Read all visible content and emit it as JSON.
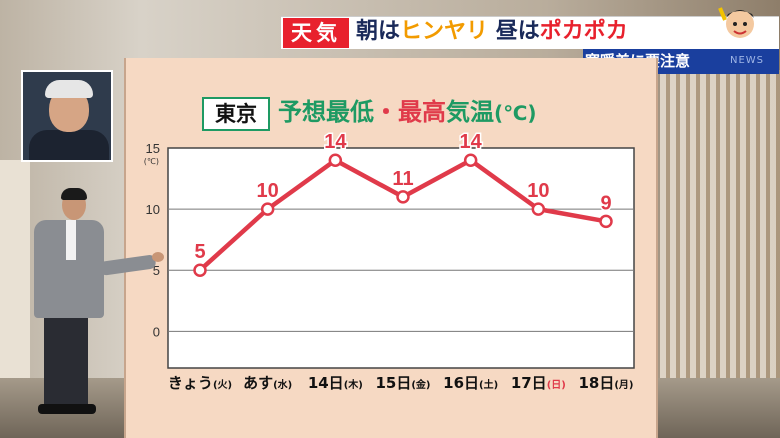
{
  "banner": {
    "badge": "天気",
    "headline": {
      "part1": "朝は",
      "part2": "ヒンヤリ",
      "part3": "昼は",
      "part4": "ポカポカ"
    },
    "subline": "寒暖差に要注意",
    "tag": "NEWS"
  },
  "board": {
    "location": "東京",
    "title": {
      "part1": "予想",
      "part2": "最低",
      "dot": "・",
      "part3": "最高",
      "part4": "気温",
      "unit": "(℃)"
    }
  },
  "colors": {
    "line": "#e03a4a",
    "accent_green": "#1e9a63",
    "badge_red": "#e8212d",
    "sub_blue": "#1a3f9e"
  },
  "chart_data": {
    "type": "line",
    "ylim": [
      -3,
      15
    ],
    "yticks": [
      0,
      5,
      10,
      15
    ],
    "ylabel_unit": "(℃)",
    "categories": [
      {
        "main": "きょう",
        "day": "(火)",
        "day_color": "#111111"
      },
      {
        "main": "あす",
        "day": "(水)",
        "day_color": "#111111"
      },
      {
        "main": "14日",
        "day": "(木)",
        "day_color": "#111111"
      },
      {
        "main": "15日",
        "day": "(金)",
        "day_color": "#111111"
      },
      {
        "main": "16日",
        "day": "(土)",
        "day_color": "#111111"
      },
      {
        "main": "17日",
        "day": "(日)",
        "day_color": "#e03a4a"
      },
      {
        "main": "18日",
        "day": "(月)",
        "day_color": "#111111"
      }
    ],
    "series": [
      {
        "values": [
          5,
          10,
          14,
          11,
          14,
          10,
          9
        ]
      }
    ]
  }
}
